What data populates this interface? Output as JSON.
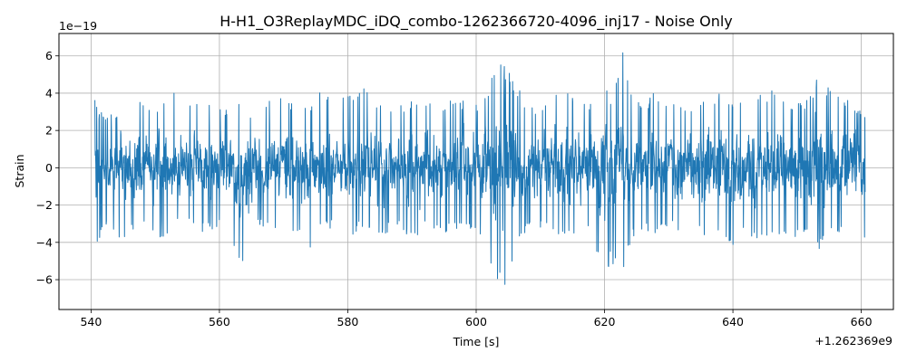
{
  "chart_data": {
    "type": "line",
    "title": "H-H1_O3ReplayMDC_iDQ_combo-1262366720-4096_inj17 - Noise Only",
    "xlabel": "Time [s]",
    "ylabel": "Strain",
    "x_offset_label": "+1.262369e9",
    "y_scale_label": "1e−19",
    "xlim": [
      535,
      665
    ],
    "ylim": [
      -7.6,
      7.2
    ],
    "x_range": [
      540.6,
      660.6
    ],
    "x_ticks": [
      540,
      560,
      580,
      600,
      620,
      640,
      660
    ],
    "y_ticks": [
      -6,
      -4,
      -2,
      0,
      2,
      4,
      6
    ],
    "x_tick_labels": [
      "540",
      "560",
      "580",
      "600",
      "620",
      "640",
      "660"
    ],
    "y_tick_labels": [
      "−6",
      "−4",
      "−2",
      "0",
      "2",
      "4",
      "6"
    ],
    "grid": true,
    "series": [
      {
        "color": "#1f77b4",
        "envelope": [
          [
            540.6,
            4.1,
            -3.8
          ],
          [
            541.0,
            3.0,
            -4.0
          ],
          [
            543.0,
            3.0,
            -3.0
          ],
          [
            545.0,
            3.3,
            -4.3
          ],
          [
            547.0,
            3.7,
            -3.0
          ],
          [
            549.0,
            3.2,
            -3.2
          ],
          [
            551.0,
            3.6,
            -4.1
          ],
          [
            552.9,
            4.6,
            -3.2
          ],
          [
            555.0,
            3.5,
            -2.9
          ],
          [
            557.0,
            3.8,
            -3.5
          ],
          [
            559.0,
            3.3,
            -3.4
          ],
          [
            561.0,
            3.2,
            -3.1
          ],
          [
            563.5,
            3.7,
            -5.5
          ],
          [
            564.0,
            3.0,
            -5.9
          ],
          [
            566.0,
            3.2,
            -3.0
          ],
          [
            568.0,
            3.8,
            -3.4
          ],
          [
            570.0,
            3.8,
            -3.3
          ],
          [
            572.0,
            3.3,
            -3.6
          ],
          [
            574.5,
            3.5,
            -5.1
          ],
          [
            575.5,
            4.3,
            -3.4
          ],
          [
            578.0,
            3.7,
            -3.2
          ],
          [
            580.0,
            3.8,
            -3.9
          ],
          [
            582.0,
            4.4,
            -3.3
          ],
          [
            584.0,
            3.9,
            -3.5
          ],
          [
            586.0,
            3.4,
            -3.5
          ],
          [
            588.0,
            3.3,
            -3.1
          ],
          [
            590.0,
            3.7,
            -4.1
          ],
          [
            592.0,
            3.8,
            -3.3
          ],
          [
            594.0,
            3.3,
            -3.5
          ],
          [
            596.0,
            3.6,
            -3.5
          ],
          [
            598.0,
            3.6,
            -3.0
          ],
          [
            600.0,
            3.5,
            -3.5
          ],
          [
            601.5,
            4.0,
            -4.2
          ],
          [
            603.0,
            5.4,
            -6.4
          ],
          [
            604.0,
            5.6,
            -5.7
          ],
          [
            605.0,
            5.3,
            -6.9
          ],
          [
            606.5,
            4.3,
            -4.0
          ],
          [
            608.0,
            3.5,
            -3.3
          ],
          [
            610.0,
            3.2,
            -3.3
          ],
          [
            612.0,
            3.7,
            -3.4
          ],
          [
            614.0,
            4.6,
            -4.0
          ],
          [
            616.0,
            3.4,
            -3.8
          ],
          [
            618.0,
            3.5,
            -3.5
          ],
          [
            620.0,
            5.5,
            -6.5
          ],
          [
            621.0,
            3.5,
            -5.0
          ],
          [
            622.8,
            6.5,
            -6.3
          ],
          [
            624.0,
            4.0,
            -4.0
          ],
          [
            626.0,
            3.4,
            -3.3
          ],
          [
            628.0,
            4.2,
            -3.8
          ],
          [
            630.0,
            3.5,
            -3.0
          ],
          [
            632.0,
            3.5,
            -3.5
          ],
          [
            634.0,
            3.4,
            -3.4
          ],
          [
            636.0,
            3.7,
            -3.9
          ],
          [
            638.0,
            4.0,
            -3.4
          ],
          [
            640.0,
            3.7,
            -4.3
          ],
          [
            642.0,
            3.6,
            -3.6
          ],
          [
            644.0,
            3.9,
            -4.2
          ],
          [
            646.0,
            4.2,
            -3.5
          ],
          [
            648.0,
            3.5,
            -4.0
          ],
          [
            650.0,
            3.5,
            -3.7
          ],
          [
            652.0,
            3.8,
            -3.8
          ],
          [
            653.3,
            5.3,
            -4.4
          ],
          [
            655.0,
            4.2,
            -3.8
          ],
          [
            657.0,
            3.7,
            -3.5
          ],
          [
            659.0,
            3.5,
            -4.2
          ],
          [
            660.6,
            3.0,
            -4.3
          ]
        ]
      }
    ]
  }
}
